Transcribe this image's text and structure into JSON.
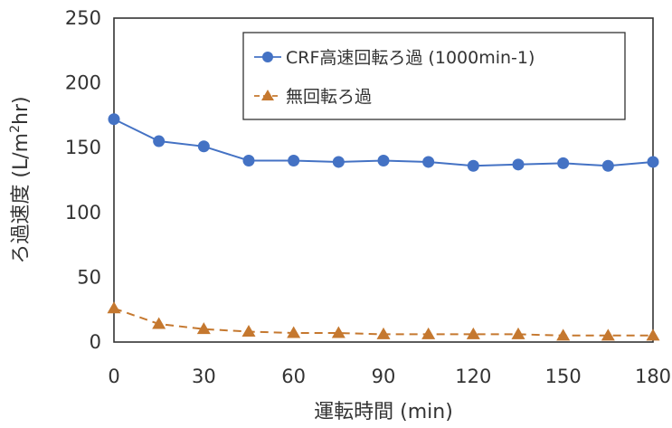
{
  "chart_data": {
    "type": "line",
    "title": "",
    "xlabel": "運転時間 (min)",
    "ylabel_main": "ろ過速度 (L/m",
    "ylabel_sup": "2",
    "ylabel_tail": "hr)",
    "xlim": [
      0,
      180
    ],
    "ylim": [
      0,
      250
    ],
    "xticks": [
      0,
      30,
      60,
      90,
      120,
      150,
      180
    ],
    "yticks": [
      0,
      50,
      100,
      150,
      200,
      250
    ],
    "grid": false,
    "legend_position": "top-right",
    "series": [
      {
        "name": "CRF高速回転ろ過 (1000min-1)",
        "color": "#4472C4",
        "line_style": "solid",
        "marker": "circle",
        "x": [
          0,
          15,
          30,
          45,
          60,
          75,
          90,
          105,
          120,
          135,
          150,
          165,
          180
        ],
        "y": [
          172,
          155,
          151,
          140,
          140,
          139,
          140,
          139,
          136,
          137,
          138,
          136,
          139
        ]
      },
      {
        "name": "無回転ろ過",
        "color": "#C5782F",
        "line_style": "dashed",
        "marker": "triangle",
        "x": [
          0,
          15,
          30,
          45,
          60,
          75,
          90,
          105,
          120,
          135,
          150,
          165,
          180
        ],
        "y": [
          26,
          14,
          10,
          8,
          7,
          7,
          6,
          6,
          6,
          6,
          5,
          5,
          5
        ]
      }
    ]
  }
}
